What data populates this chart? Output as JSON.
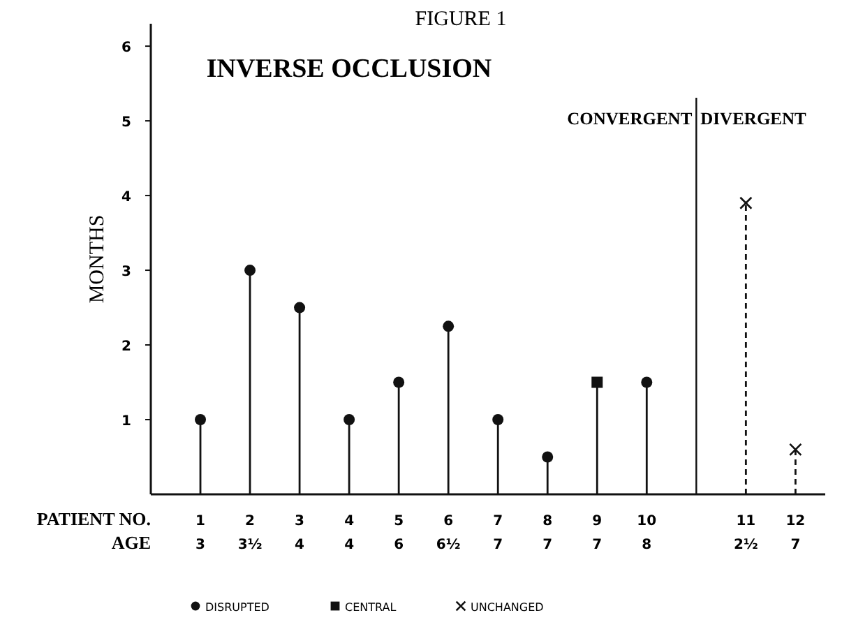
{
  "chart_data": {
    "type": "lollipop",
    "title": "FIGURE 1",
    "subtitle": "INVERSE OCCLUSION",
    "ylabel": "MONTHS",
    "xlabel": "PATIENT NO.\nAGE",
    "categories": [
      "1\n3",
      "2\n3½",
      "3\n4",
      "4\n4",
      "5\n6",
      "6\n6½",
      "7\n7",
      "8\n7",
      "9\n7",
      "10\n8",
      null,
      "11\n2½",
      "12\n7"
    ],
    "ylim": [
      0,
      6.3
    ],
    "yticks": [
      1,
      2,
      3,
      4,
      5,
      6
    ],
    "series": [
      {
        "name": "DISRUPTED",
        "color": "#111111",
        "marker": "circle",
        "line_style": "solid",
        "values": [
          1,
          3,
          2.5,
          1,
          1.5,
          2.25,
          1,
          0.5,
          null,
          1.5,
          null,
          null,
          null
        ]
      },
      {
        "name": "CENTRAL",
        "color": "#111111",
        "marker": "square",
        "line_style": "solid",
        "values": [
          null,
          null,
          null,
          null,
          null,
          null,
          null,
          null,
          1.5,
          null,
          null,
          null,
          null
        ]
      },
      {
        "name": "UNCHANGED",
        "color": "#111111",
        "marker": "cross",
        "line_style": "dashed",
        "values": [
          null,
          null,
          null,
          null,
          null,
          null,
          null,
          null,
          null,
          null,
          null,
          3.9,
          0.6
        ]
      }
    ],
    "annotations": [
      "CONVERGENT",
      "DIVERGENT"
    ],
    "legend": "bottom"
  }
}
